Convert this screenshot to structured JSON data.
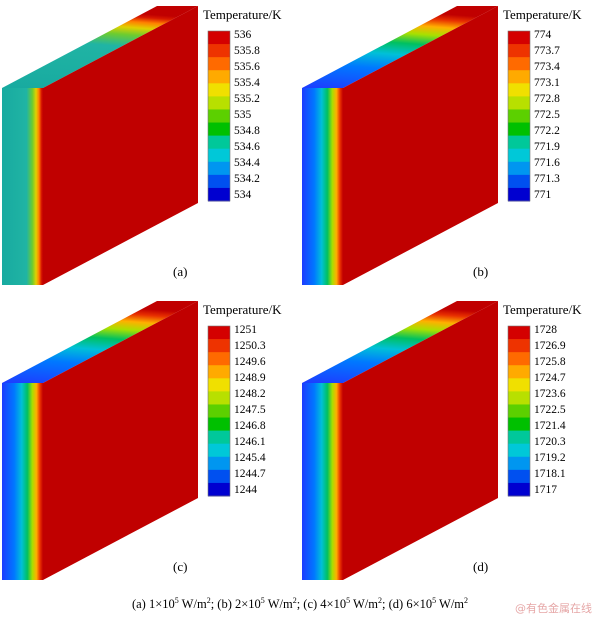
{
  "panels": [
    {
      "id": "a",
      "label": "(a)",
      "legend_title": "Temperature/K",
      "legend_ticks": [
        "536",
        "535.8",
        "535.6",
        "535.4",
        "535.2",
        "535",
        "534.8",
        "534.6",
        "534.4",
        "534.2",
        "534"
      ],
      "gradient": "teal"
    },
    {
      "id": "b",
      "label": "(b)",
      "legend_title": "Temperature/K",
      "legend_ticks": [
        "774",
        "773.7",
        "773.4",
        "773.1",
        "772.8",
        "772.5",
        "772.2",
        "771.9",
        "771.6",
        "771.3",
        "771"
      ],
      "gradient": "blue"
    },
    {
      "id": "c",
      "label": "(c)",
      "legend_title": "Temperature/K",
      "legend_ticks": [
        "1251",
        "1250.3",
        "1249.6",
        "1248.9",
        "1248.2",
        "1247.5",
        "1246.8",
        "1246.1",
        "1245.4",
        "1244.7",
        "1244"
      ],
      "gradient": "blue"
    },
    {
      "id": "d",
      "label": "(d)",
      "legend_title": "Temperature/K",
      "legend_ticks": [
        "1728",
        "1726.9",
        "1725.8",
        "1724.7",
        "1723.6",
        "1722.5",
        "1721.4",
        "1720.3",
        "1719.2",
        "1718.1",
        "1717"
      ],
      "gradient": "blue"
    }
  ],
  "caption": {
    "a_prefix": "(a) 1×10",
    "b_prefix": "; (b) 2×10",
    "c_prefix": "; (c) 4×10",
    "d_prefix": "; (d) 6×10",
    "exp": "5",
    "unit": " W/m",
    "unit_exp": "2",
    "sep": "; "
  },
  "watermark": "@有色金属在线",
  "colorscale": [
    "#d40000",
    "#ee3300",
    "#ff6a00",
    "#ffaa00",
    "#f0e000",
    "#b8e000",
    "#5cd000",
    "#00c000",
    "#00c89a",
    "#00c8d8",
    "#0096f0",
    "#0050f0",
    "#0000d0"
  ]
}
